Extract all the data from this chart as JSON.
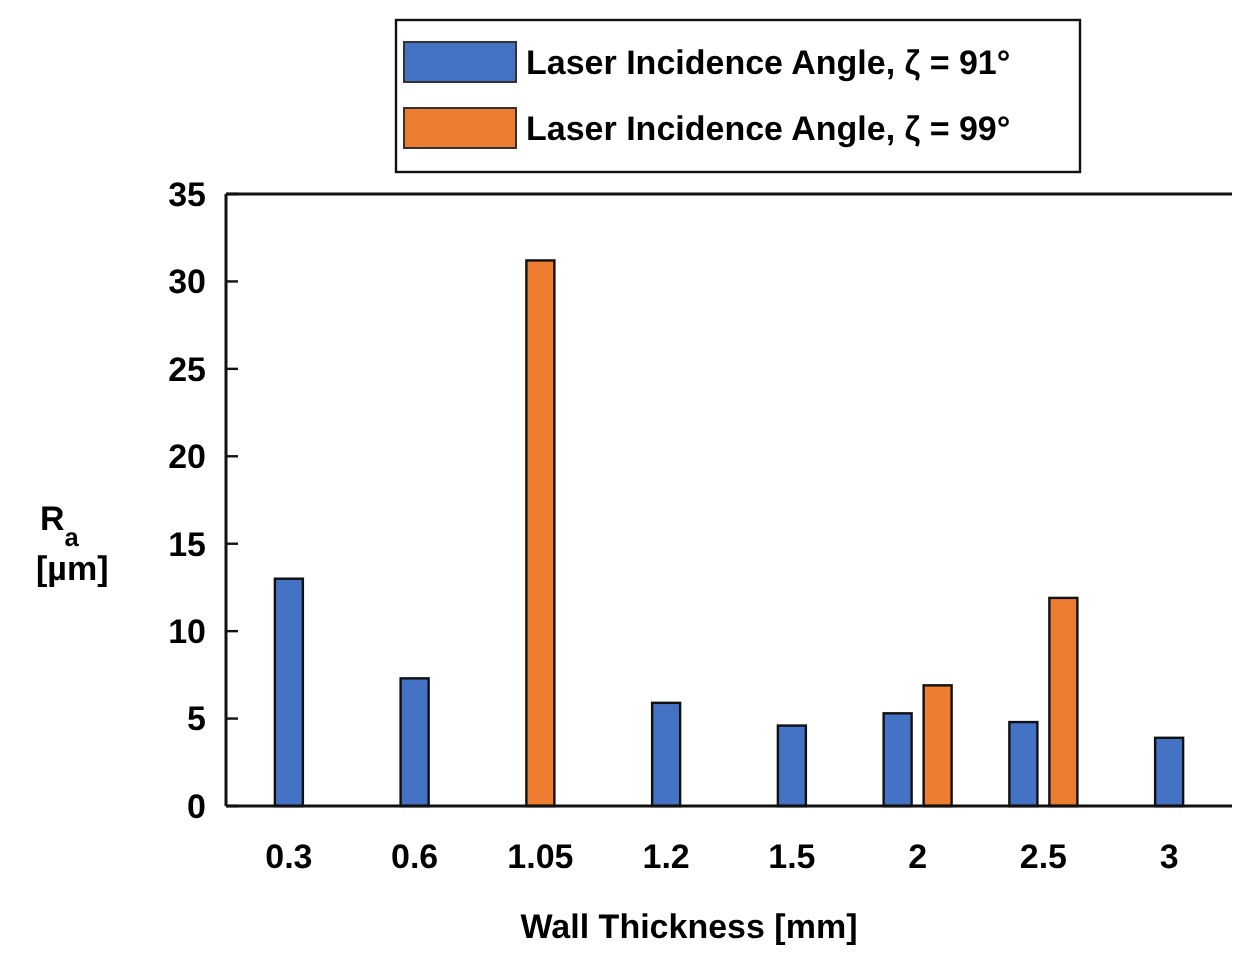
{
  "chart_data": {
    "type": "bar",
    "xlabel": "Wall Thickness [mm]",
    "ylabel": "R$_{a}$ [µm]",
    "categories": [
      "0.3",
      "0.6",
      "1.05",
      "1.2",
      "1.5",
      "2",
      "2.5",
      "3"
    ],
    "series": [
      {
        "name": "Laser Incidence Angle, ζ = 91°",
        "color": "#4472c4",
        "values": [
          13.0,
          7.3,
          null,
          5.9,
          4.6,
          5.3,
          4.8,
          3.9
        ]
      },
      {
        "name": "Laser Incidence Angle, ζ = 99°",
        "color": "#ed7d31",
        "values": [
          null,
          null,
          31.2,
          null,
          null,
          6.9,
          11.9,
          null
        ]
      }
    ],
    "ylim": [
      0,
      35
    ],
    "yticks": [
      0,
      5,
      10,
      15,
      20,
      25,
      30,
      35
    ],
    "grid": false,
    "legend": "top"
  }
}
